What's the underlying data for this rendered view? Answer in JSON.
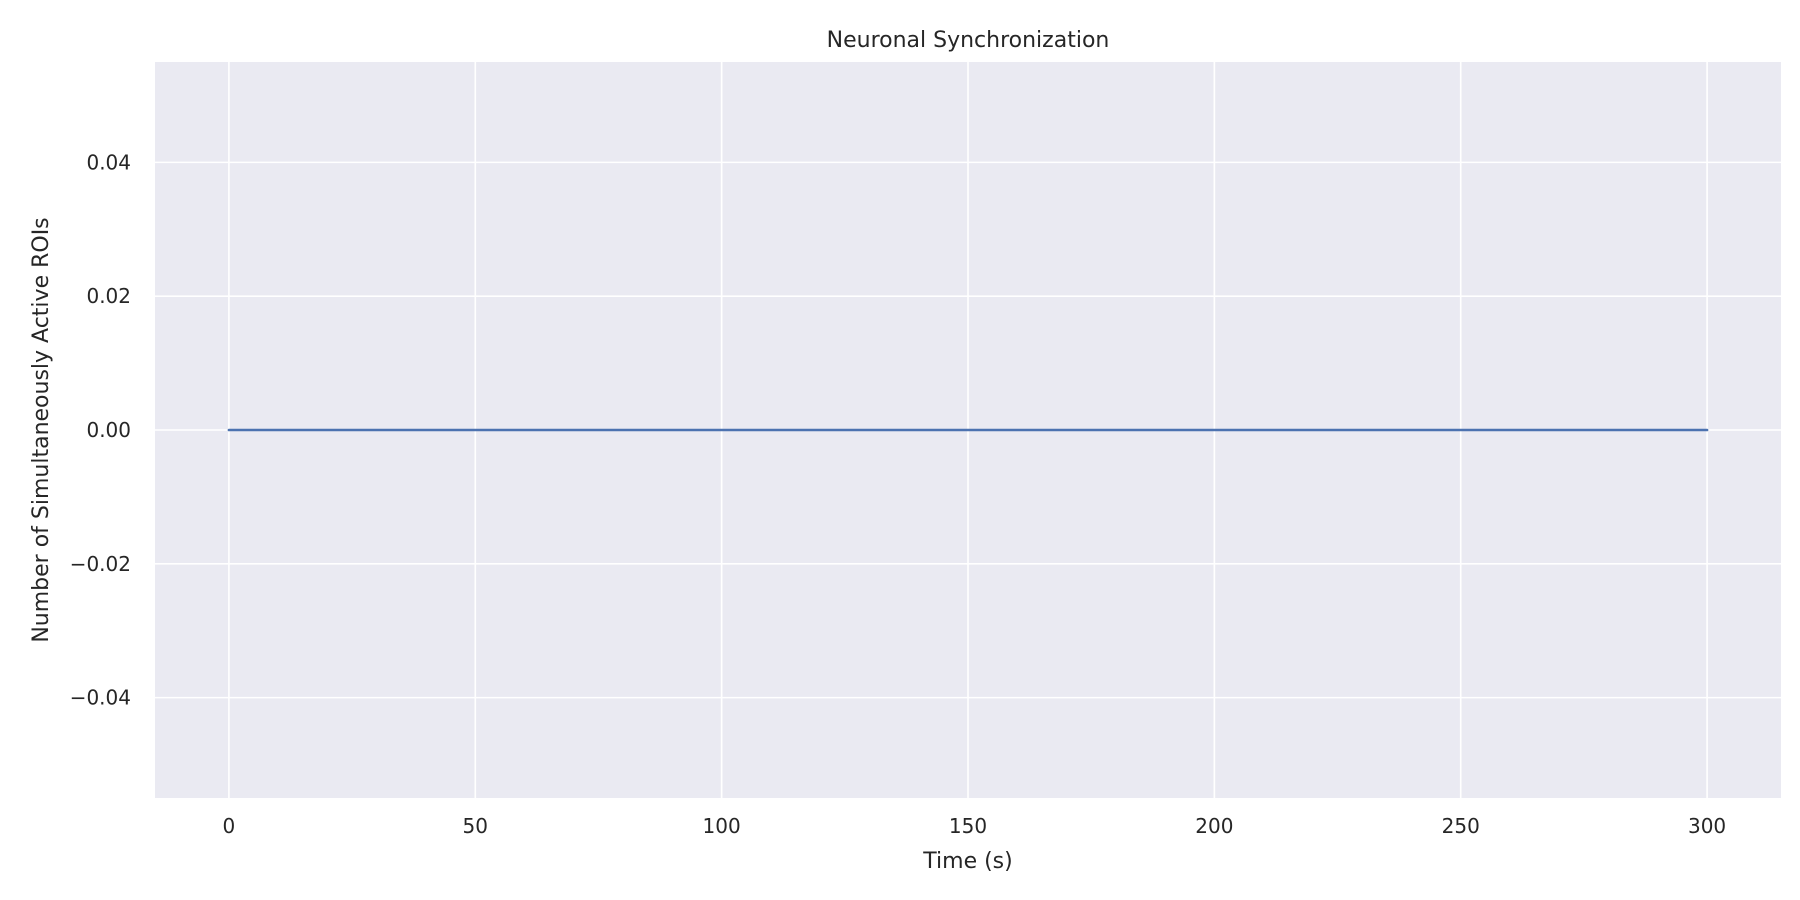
{
  "chart_data": {
    "type": "line",
    "title": "Neuronal Synchronization",
    "xlabel": "Time (s)",
    "ylabel": "Number of Simultaneously Active ROIs",
    "xlim": [
      -15,
      315
    ],
    "ylim": [
      -0.055,
      0.055
    ],
    "xticks": [
      0,
      50,
      100,
      150,
      200,
      250,
      300
    ],
    "yticks": [
      -0.04,
      -0.02,
      0.0,
      0.02,
      0.04
    ],
    "xtick_labels": [
      "0",
      "50",
      "100",
      "150",
      "200",
      "250",
      "300"
    ],
    "ytick_labels": [
      "−0.04",
      "−0.02",
      "0.00",
      "0.02",
      "0.04"
    ],
    "grid": true,
    "colors": {
      "background": "#eaeaf2",
      "grid": "#ffffff",
      "line": "#4c72b0"
    },
    "series": [
      {
        "x": [
          0,
          300
        ],
        "y": [
          0,
          0
        ]
      }
    ]
  }
}
